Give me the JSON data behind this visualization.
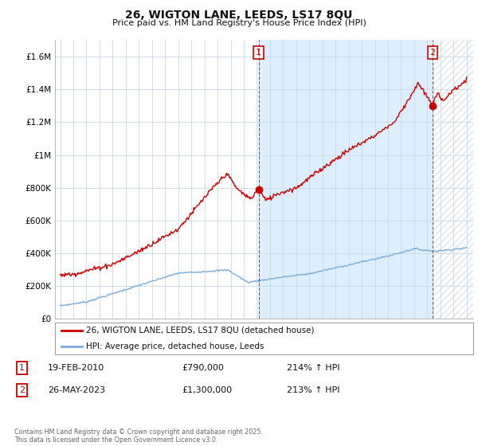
{
  "title": "26, WIGTON LANE, LEEDS, LS17 8QU",
  "subtitle": "Price paid vs. HM Land Registry's House Price Index (HPI)",
  "legend_line1": "26, WIGTON LANE, LEEDS, LS17 8QU (detached house)",
  "legend_line2": "HPI: Average price, detached house, Leeds",
  "point1_label": "1",
  "point1_date": "19-FEB-2010",
  "point1_price": "£790,000",
  "point1_hpi": "214% ↑ HPI",
  "point2_label": "2",
  "point2_date": "26-MAY-2023",
  "point2_price": "£1,300,000",
  "point2_hpi": "213% ↑ HPI",
  "footer": "Contains HM Land Registry data © Crown copyright and database right 2025.\nThis data is licensed under the Open Government Licence v3.0.",
  "red_color": "#cc0000",
  "blue_color": "#7aacdc",
  "shade_color": "#ddeeff",
  "background_color": "#ffffff",
  "grid_color": "#c8d8e8",
  "ylim": [
    0,
    1700000
  ],
  "yticks": [
    0,
    200000,
    400000,
    600000,
    800000,
    1000000,
    1200000,
    1400000,
    1600000
  ],
  "ytick_labels": [
    "£0",
    "£200K",
    "£400K",
    "£600K",
    "£800K",
    "£1M",
    "£1.2M",
    "£1.4M",
    "£1.6M"
  ],
  "xmin": 1994.6,
  "xmax": 2026.5,
  "point1_x": 2010.13,
  "point1_y": 790000,
  "point2_x": 2023.4,
  "point2_y": 1300000
}
